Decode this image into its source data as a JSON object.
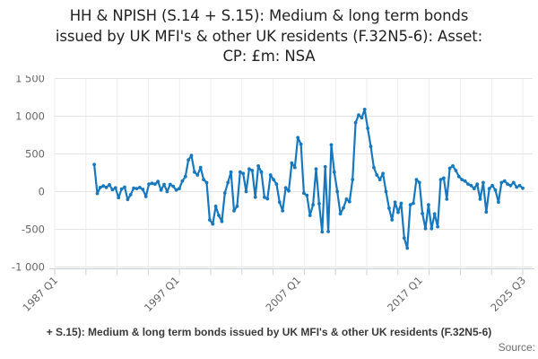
{
  "title": {
    "lines": [
      "HH & NPISH (S.14 + S.15): Medium & long term bonds",
      "issued by UK MFI's & other UK residents (F.32N5-6): Asset:",
      "CP: £m: NSA"
    ]
  },
  "footer": {
    "legend": "+ S.15): Medium & long term bonds issued by UK MFI's & other UK residents (F.32N5-6)",
    "source": "Source:"
  },
  "colors": {
    "line": "#1778be",
    "grid_h": "#e4e4e4",
    "grid_v": "#ededed",
    "axis": "#c9d0dd",
    "label": "#666666"
  },
  "chart_data": {
    "type": "line",
    "title": "HH & NPISH (S.14 + S.15): Medium & long term bonds issued by UK MFI's & other UK residents (F.32N5-6): Asset: CP: £m: NSA",
    "unit": "£m",
    "grid": true,
    "legend_position": "bottom",
    "x_axis": {
      "range": [
        "1987 Q1",
        "2025 Q3"
      ],
      "total_quarters": 154,
      "minor_tick_count": 16,
      "labels": [
        {
          "label": "1987 Q1",
          "q": 0
        },
        {
          "label": "1997 Q1",
          "q": 40
        },
        {
          "label": "2007 Q1",
          "q": 80
        },
        {
          "label": "2017 Q1",
          "q": 120
        },
        {
          "label": "2025 Q3",
          "q": 154
        }
      ]
    },
    "y_axis": {
      "min": -1000,
      "max": 1500,
      "tick_values": [
        1500,
        1000,
        500,
        0,
        -500,
        -1000
      ],
      "tick_labels": [
        "1 500",
        "1 000",
        "500",
        "0",
        "-500",
        "-1 000"
      ]
    },
    "series": [
      {
        "name": "HH & NPISH (S.14 + S.15): Medium & long term bonds issued by UK MFI's & other UK residents (F.32N5-6): Asset: CP: £m: NSA",
        "start_quarter": "1990 Q2",
        "end_quarter": "2025 Q3",
        "start_quarter_index_from_1987Q1": 13,
        "values": [
          360,
          -25,
          55,
          75,
          55,
          90,
          25,
          50,
          -80,
          35,
          60,
          -105,
          -40,
          45,
          40,
          55,
          30,
          -65,
          100,
          110,
          100,
          135,
          20,
          95,
          0,
          95,
          70,
          20,
          40,
          140,
          200,
          420,
          478,
          260,
          220,
          320,
          160,
          120,
          -375,
          -430,
          -195,
          -315,
          -395,
          -18,
          120,
          260,
          -255,
          -195,
          260,
          240,
          0,
          300,
          280,
          -75,
          340,
          260,
          -75,
          -95,
          220,
          160,
          100,
          -140,
          -255,
          50,
          10,
          380,
          320,
          717,
          630,
          -20,
          -50,
          -315,
          -175,
          300,
          -160,
          -535,
          330,
          -530,
          620,
          260,
          0,
          -295,
          -215,
          -100,
          -135,
          160,
          915,
          1015,
          980,
          1090,
          840,
          600,
          320,
          220,
          160,
          240,
          0,
          -220,
          -375,
          -140,
          -275,
          -155,
          -615,
          -750,
          -175,
          -155,
          160,
          120,
          -290,
          -490,
          -175,
          -490,
          -295,
          -465,
          160,
          180,
          -100,
          310,
          340,
          280,
          200,
          160,
          140,
          100,
          80,
          40,
          100,
          -100,
          120,
          -270,
          40,
          80,
          20,
          -140,
          120,
          140,
          100,
          80,
          120,
          60,
          80,
          45
        ]
      }
    ]
  }
}
